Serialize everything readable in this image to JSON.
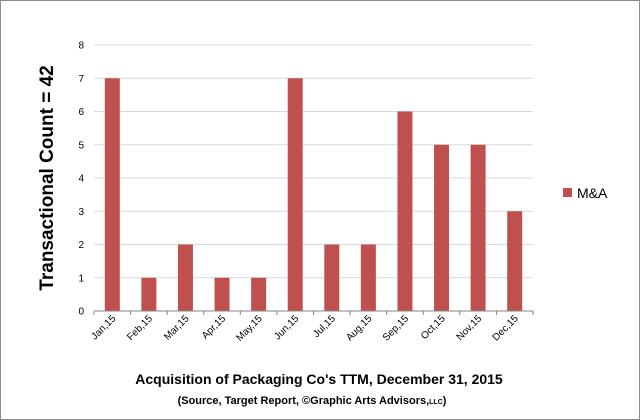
{
  "chart_data": {
    "type": "bar",
    "categories": [
      "Jan,15",
      "Feb,15",
      "Mar,15",
      "Apr,15",
      "May,15",
      "Jun,15",
      "Jul,15",
      "Aug,15",
      "Sep,15",
      "Oct,15",
      "Nov,15",
      "Dec,15"
    ],
    "series": [
      {
        "name": "M&A",
        "values": [
          7,
          1,
          2,
          1,
          1,
          7,
          2,
          2,
          6,
          5,
          5,
          3
        ],
        "color": "#c0504d"
      }
    ],
    "ylabel": "Transactional Count = 42",
    "xlabel": "Acquisition of Packaging Co's TTM,  December 31, 2015",
    "source_note": "(Source, Target Report, ©Graphic Arts Advisors,",
    "source_suffix": "LLC",
    "source_close": ")",
    "ylim": [
      0,
      8
    ],
    "yticks": [
      0,
      1,
      2,
      3,
      4,
      5,
      6,
      7,
      8
    ],
    "grid": true,
    "legend": "right"
  }
}
